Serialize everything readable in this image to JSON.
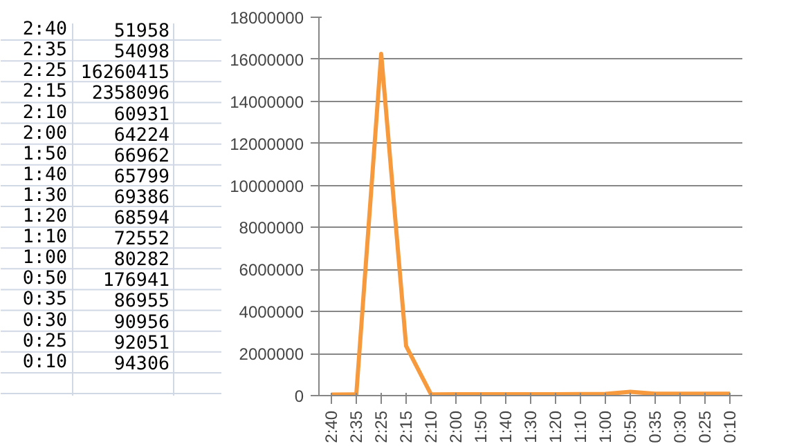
{
  "chart_data": {
    "type": "line",
    "categories": [
      "2:40",
      "2:35",
      "2:25",
      "2:15",
      "2:10",
      "2:00",
      "1:50",
      "1:40",
      "1:30",
      "1:20",
      "1:10",
      "1:00",
      "0:50",
      "0:35",
      "0:30",
      "0:25",
      "0:10"
    ],
    "series": [
      {
        "color": "#f79a3e",
        "values": [
          51958,
          54098,
          16260415,
          2358096,
          60931,
          64224,
          66962,
          65799,
          69386,
          68594,
          72552,
          80282,
          176941,
          86955,
          90956,
          92051,
          94306
        ]
      }
    ],
    "ylim": [
      0,
      18000000
    ],
    "yticks": [
      0,
      2000000,
      4000000,
      6000000,
      8000000,
      10000000,
      12000000,
      14000000,
      16000000,
      18000000
    ],
    "grid": "y",
    "marker": "none",
    "line_style": "solid",
    "annotations": [
      "51958",
      "54098",
      "16260415",
      "2358096",
      "60931",
      "64224",
      "66962",
      "65799",
      "69386",
      "68594",
      "72552",
      "80282",
      "176941",
      "86955",
      "90956",
      "92051",
      "94306"
    ]
  }
}
